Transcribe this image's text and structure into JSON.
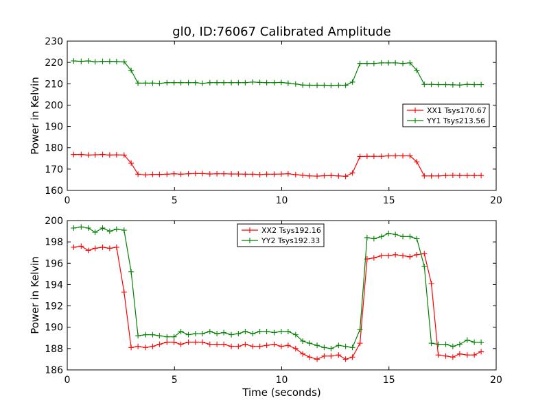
{
  "chart_data": [
    {
      "type": "line",
      "title": "gl0, ID:76067 Calibrated Amplitude",
      "xlabel": "",
      "ylabel": "Power in Kelvin",
      "xlim": [
        0,
        20
      ],
      "ylim": [
        160,
        230
      ],
      "xticks": [
        0,
        5,
        10,
        15,
        20
      ],
      "yticks": [
        160,
        170,
        180,
        190,
        200,
        210,
        220,
        230
      ],
      "legend_position": "center-right",
      "grid": false,
      "x": [
        0.3,
        0.65,
        0.98,
        1.3,
        1.65,
        1.98,
        2.3,
        2.65,
        2.98,
        3.3,
        3.65,
        3.98,
        4.3,
        4.65,
        4.98,
        5.3,
        5.65,
        5.98,
        6.3,
        6.65,
        6.98,
        7.3,
        7.65,
        7.98,
        8.3,
        8.65,
        8.98,
        9.3,
        9.65,
        9.98,
        10.3,
        10.65,
        10.98,
        11.3,
        11.65,
        11.98,
        12.3,
        12.65,
        12.98,
        13.3,
        13.65,
        13.98,
        14.3,
        14.65,
        14.98,
        15.3,
        15.65,
        15.98,
        16.3,
        16.65,
        16.98,
        17.3,
        17.65,
        17.98,
        18.3,
        18.65,
        18.98,
        19.3
      ],
      "series": [
        {
          "name": "XX1 Tsys170.67",
          "color": "#ff0000",
          "values": [
            176.8,
            176.8,
            176.6,
            176.7,
            176.8,
            176.6,
            176.7,
            176.6,
            172.8,
            167.6,
            167.3,
            167.5,
            167.5,
            167.6,
            167.8,
            167.6,
            167.8,
            167.9,
            167.9,
            167.7,
            167.8,
            167.8,
            167.7,
            167.7,
            167.6,
            167.6,
            167.4,
            167.6,
            167.6,
            167.7,
            167.8,
            167.4,
            167.1,
            166.8,
            166.7,
            166.9,
            167.0,
            166.8,
            166.6,
            168.2,
            175.9,
            176.0,
            176.0,
            176.0,
            176.2,
            176.2,
            176.2,
            176.2,
            173.4,
            166.8,
            166.8,
            166.8,
            167.0,
            167.1,
            167.0,
            167.0,
            167.0,
            167.0
          ]
        },
        {
          "name": "YY1 Tsys213.56",
          "color": "#008000",
          "values": [
            220.7,
            220.5,
            220.7,
            220.3,
            220.5,
            220.5,
            220.4,
            220.3,
            216.3,
            210.3,
            210.3,
            210.3,
            210.2,
            210.5,
            210.5,
            210.5,
            210.5,
            210.5,
            210.2,
            210.5,
            210.5,
            210.5,
            210.5,
            210.5,
            210.5,
            210.8,
            210.6,
            210.5,
            210.5,
            210.6,
            210.3,
            209.9,
            209.4,
            209.3,
            209.3,
            209.3,
            209.2,
            209.3,
            209.3,
            210.8,
            219.5,
            219.5,
            219.5,
            219.8,
            219.8,
            219.8,
            219.5,
            219.8,
            216.3,
            209.7,
            209.7,
            209.6,
            209.6,
            209.5,
            209.4,
            209.7,
            209.6,
            209.6
          ]
        }
      ]
    },
    {
      "type": "line",
      "title": "",
      "xlabel": "Time (seconds)",
      "ylabel": "Power in Kelvin",
      "xlim": [
        0,
        20
      ],
      "ylim": [
        186,
        200
      ],
      "xticks": [
        0,
        5,
        10,
        15,
        20
      ],
      "yticks": [
        186,
        188,
        190,
        192,
        194,
        196,
        198,
        200
      ],
      "legend_position": "upper-center",
      "grid": false,
      "x": [
        0.3,
        0.65,
        0.98,
        1.3,
        1.65,
        1.98,
        2.3,
        2.65,
        2.98,
        3.3,
        3.65,
        3.98,
        4.3,
        4.65,
        4.98,
        5.3,
        5.65,
        5.98,
        6.3,
        6.65,
        6.98,
        7.3,
        7.65,
        7.98,
        8.3,
        8.65,
        8.98,
        9.3,
        9.65,
        9.98,
        10.3,
        10.65,
        10.98,
        11.3,
        11.65,
        11.98,
        12.3,
        12.65,
        12.98,
        13.3,
        13.65,
        13.98,
        14.3,
        14.65,
        14.98,
        15.3,
        15.65,
        15.98,
        16.3,
        16.65,
        16.98,
        17.3,
        17.65,
        17.98,
        18.3,
        18.65,
        18.98,
        19.3
      ],
      "series": [
        {
          "name": "XX2 Tsys192.16",
          "color": "#ff0000",
          "values": [
            197.5,
            197.6,
            197.2,
            197.4,
            197.5,
            197.4,
            197.5,
            193.3,
            188.1,
            188.2,
            188.1,
            188.2,
            188.4,
            188.6,
            188.6,
            188.4,
            188.6,
            188.6,
            188.6,
            188.4,
            188.4,
            188.4,
            188.2,
            188.2,
            188.4,
            188.2,
            188.2,
            188.3,
            188.4,
            188.2,
            188.3,
            188.0,
            187.5,
            187.2,
            187.0,
            187.3,
            187.3,
            187.4,
            187.0,
            187.2,
            188.5,
            196.4,
            196.5,
            196.7,
            196.7,
            196.8,
            196.7,
            196.6,
            196.8,
            196.9,
            194.1,
            187.4,
            187.3,
            187.2,
            187.5,
            187.4,
            187.4,
            187.7
          ]
        },
        {
          "name": "YY2 Tsys192.33",
          "color": "#008000",
          "values": [
            199.3,
            199.4,
            199.3,
            198.9,
            199.3,
            199.0,
            199.2,
            199.1,
            195.2,
            189.2,
            189.3,
            189.3,
            189.2,
            189.1,
            189.1,
            189.6,
            189.3,
            189.4,
            189.4,
            189.6,
            189.4,
            189.5,
            189.3,
            189.4,
            189.6,
            189.4,
            189.6,
            189.6,
            189.5,
            189.6,
            189.6,
            189.3,
            188.7,
            188.5,
            188.3,
            188.1,
            188.0,
            188.3,
            188.2,
            188.1,
            189.8,
            198.4,
            198.3,
            198.5,
            198.8,
            198.7,
            198.5,
            198.5,
            198.3,
            195.7,
            188.5,
            188.4,
            188.4,
            188.2,
            188.4,
            188.8,
            188.6,
            188.6
          ]
        }
      ]
    }
  ]
}
